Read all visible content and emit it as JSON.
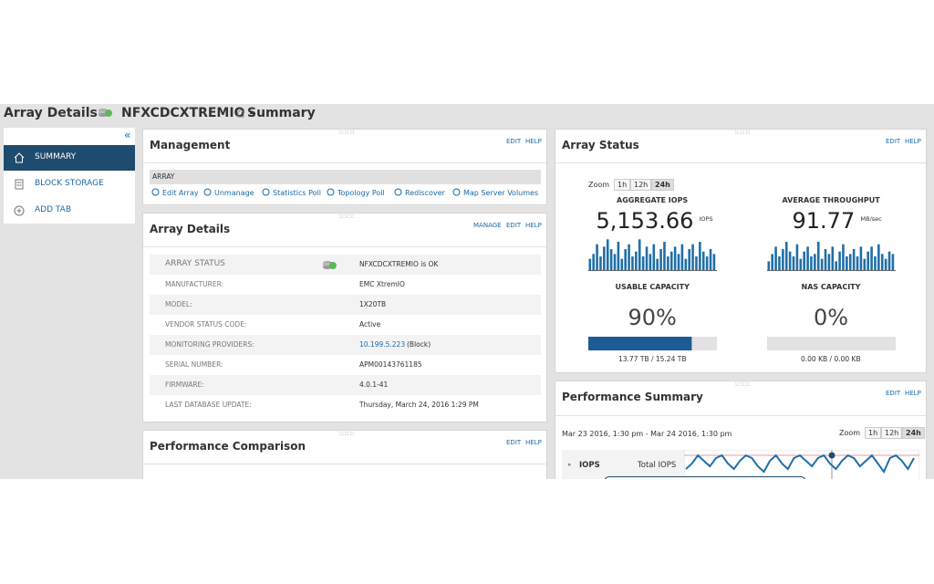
{
  "header": {
    "title": "Array Details -",
    "array_name": "NFXCDCXTREMIO -",
    "page": "Summary"
  },
  "nav": {
    "items": [
      "SUMMARY",
      "BLOCK STORAGE",
      "ADD TAB"
    ],
    "selected": 0
  },
  "management": {
    "title": "Management",
    "links": [
      "EDIT",
      "HELP"
    ],
    "section": "ARRAY",
    "actions": [
      "Edit Array",
      "Unmanage",
      "Statistics Poll",
      "Topology Poll",
      "Rediscover",
      "Map Server Volumes"
    ]
  },
  "array_details": {
    "title": "Array Details",
    "links": [
      "MANAGE",
      "EDIT",
      "HELP"
    ],
    "rows": [
      [
        "ARRAY STATUS",
        "NFXCDCXTREMIO is OK"
      ],
      [
        "MANUFACTURER:",
        "EMC XtremIO"
      ],
      [
        "MODEL:",
        "1X20TB"
      ],
      [
        "VENDOR STATUS CODE:",
        "Active"
      ],
      [
        "MONITORING PROVIDERS:",
        "10.199.5.223",
        "(Block)"
      ],
      [
        "SERIAL NUMBER:",
        "APM00143761185"
      ],
      [
        "FIRMWARE:",
        "4.0.1-41"
      ],
      [
        "LAST DATABASE UPDATE:",
        "Thursday, March 24, 2016 1:29 PM"
      ]
    ]
  },
  "performance_comparison": {
    "title": "Performance Comparison",
    "links": [
      "EDIT",
      "HELP"
    ]
  },
  "array_status": {
    "title": "Array Status",
    "links": [
      "EDIT",
      "HELP"
    ],
    "zoom_label": "Zoom",
    "zoom_options": [
      "1h",
      "12h",
      "24h"
    ],
    "selected_zoom": 2,
    "metrics": [
      {
        "label": "AGGREGATE IOPS",
        "value": "5,153.66",
        "unit": "IOPS",
        "sparkline": [
          10,
          14,
          22,
          12,
          20,
          26,
          18,
          14,
          24,
          10,
          18,
          22,
          12,
          16,
          26,
          12,
          20,
          14,
          22,
          10,
          18,
          24,
          12,
          16,
          20,
          14,
          22,
          10,
          18,
          22,
          12,
          24,
          16,
          12,
          18,
          14
        ],
        "color": "#1f6fa8"
      },
      {
        "label": "AVERAGE THROUGHPUT",
        "value": "91.77",
        "unit": "MB/sec",
        "sparkline": [
          8,
          14,
          20,
          12,
          18,
          24,
          16,
          12,
          22,
          10,
          16,
          20,
          12,
          14,
          24,
          10,
          18,
          14,
          20,
          8,
          16,
          22,
          12,
          14,
          18,
          12,
          20,
          10,
          16,
          20,
          12,
          22,
          14,
          10,
          16,
          14
        ],
        "color": "#1f6fa8"
      }
    ],
    "sparkline_ylim": [
      0,
      30
    ],
    "capacities": [
      {
        "label": "USABLE CAPACITY",
        "value": 90,
        "value_label": "90%",
        "detail": "13.77 TB / 15.24 TB",
        "color": "#1b5c94"
      },
      {
        "label": "NAS CAPACITY",
        "value": 0,
        "value_label": "0%",
        "detail": "0.00 KB / 0.00 KB",
        "color": "#1b5c94"
      }
    ],
    "capacity_lim": [
      0,
      100
    ]
  },
  "performance_summary": {
    "title": "Performance Summary",
    "links": [
      "EDIT",
      "HELP"
    ],
    "range": "Mar 23 2016, 1:30 pm - Mar 24 2016, 1:30 pm",
    "zoom_label": "Zoom",
    "zoom_options": [
      "1h",
      "12h",
      "24h"
    ],
    "selected_zoom": 2,
    "metric": "IOPS",
    "series_name": "Total IOPS",
    "values": [
      4,
      6,
      9,
      7,
      5,
      8,
      9,
      6,
      4,
      7,
      9,
      8,
      5,
      3,
      7,
      9,
      6,
      4,
      8,
      9,
      7,
      5,
      8,
      9,
      6,
      4,
      7,
      9,
      8,
      5,
      7,
      9,
      6,
      3,
      8,
      9,
      7,
      4,
      8
    ],
    "ylim": [
      0,
      10
    ],
    "color": "#1f6fa8"
  }
}
